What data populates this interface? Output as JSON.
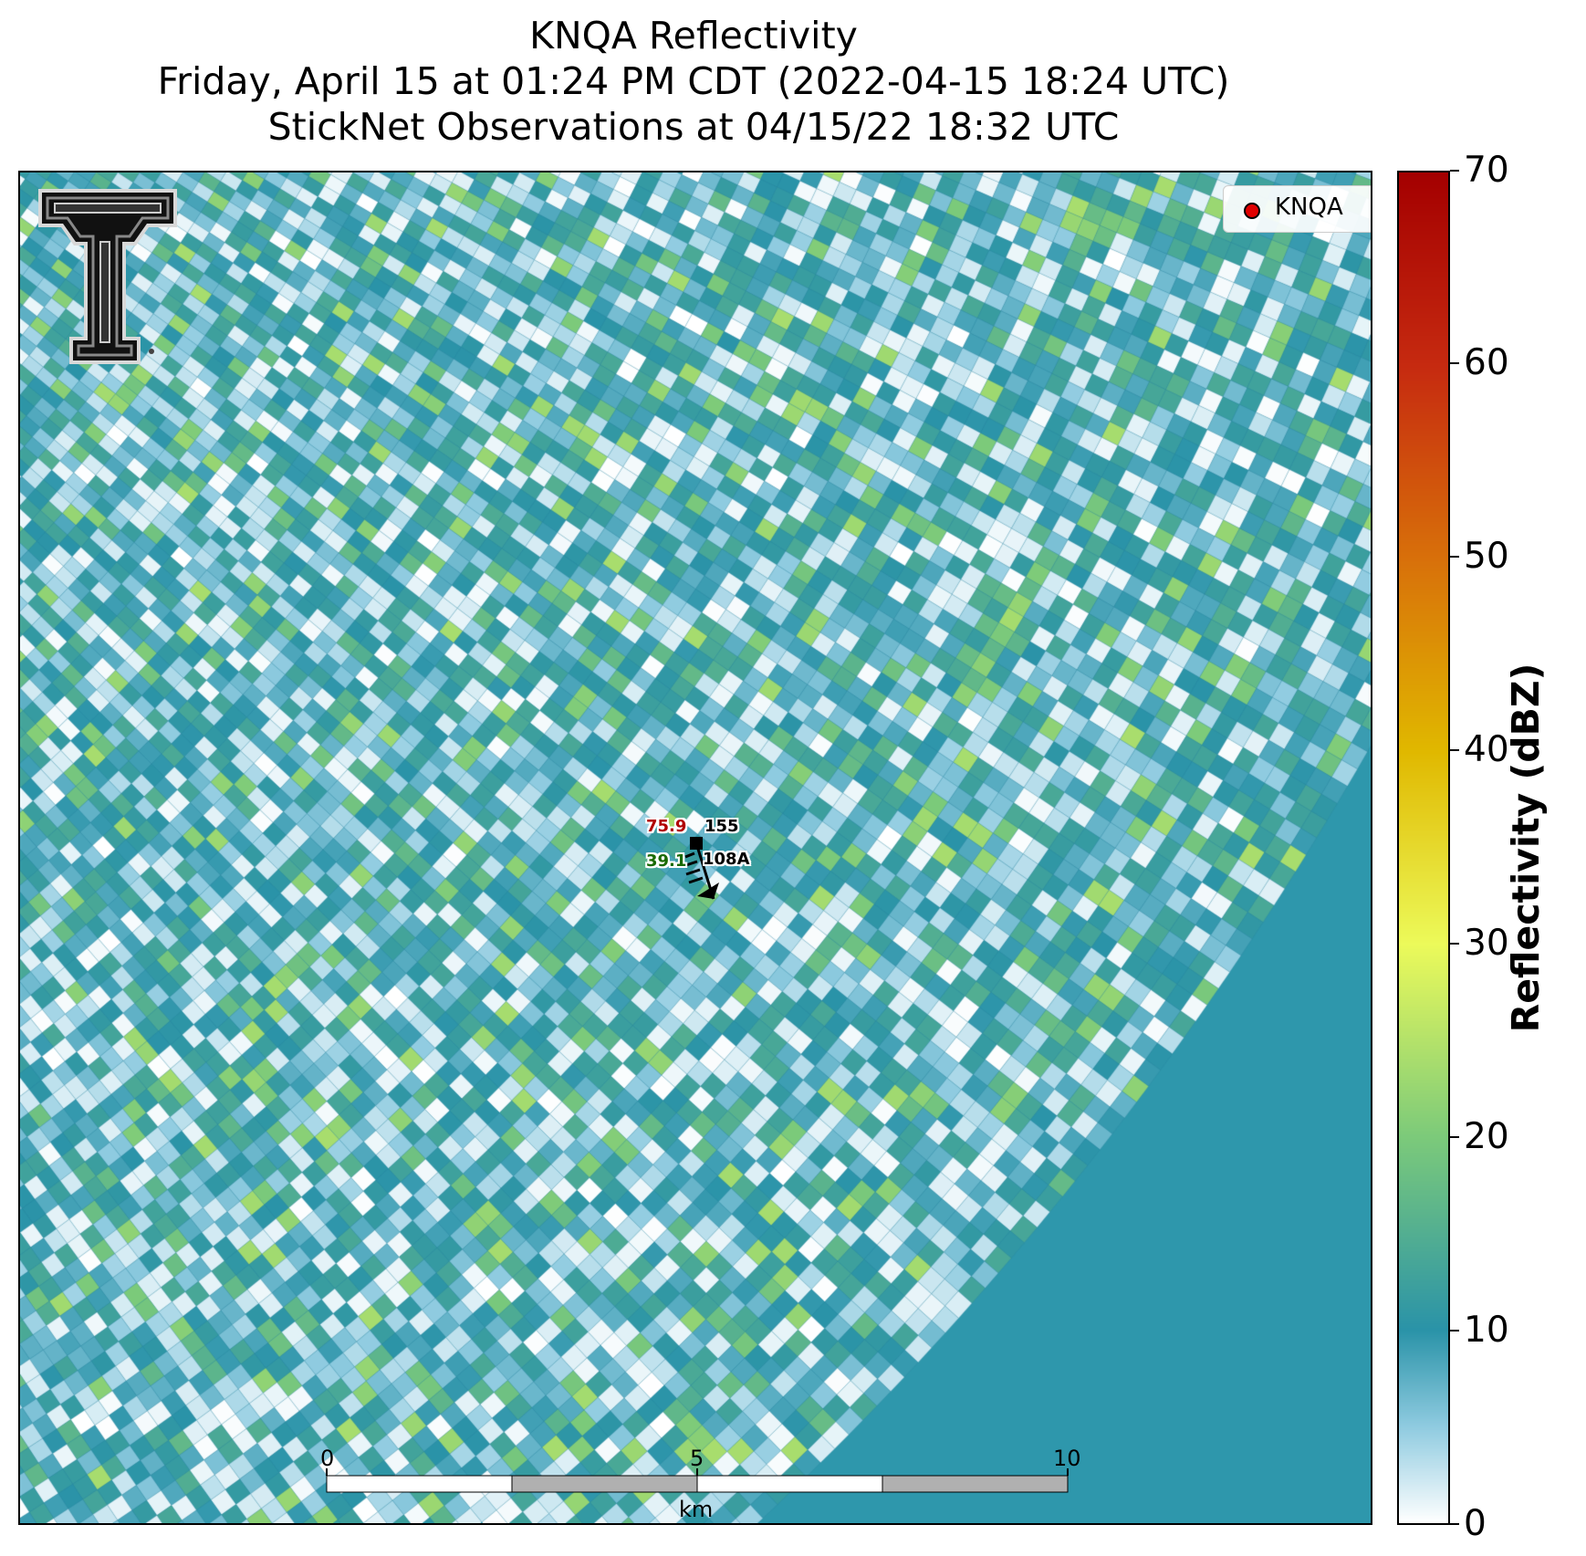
{
  "title": {
    "line1": "KNQA Reflectivity",
    "line2": "Friday, April 15 at 01:24 PM CDT (2022-04-15 18:24 UTC)",
    "line3": "StickNet Observations at 04/15/22 18:32 UTC"
  },
  "legend": {
    "label": "KNQA",
    "marker_color": "#e00000"
  },
  "station": {
    "id": "108A",
    "temperature": "75.9",
    "temperature_color": "#b00000",
    "dewpoint": "39.1",
    "dewpoint_color": "#1a6a00",
    "pressure": "155",
    "wind_barb": "wind barb pointing north-northwest"
  },
  "colorbar": {
    "title": "Reflectivity (dBZ)",
    "min": 0,
    "max": 70,
    "ticks": [
      "0",
      "10",
      "20",
      "30",
      "40",
      "50",
      "60",
      "70"
    ],
    "colors": {
      "0": "#ffffff",
      "5": "#8fcbe0",
      "10": "#2a93a8",
      "20": "#7cca7a",
      "30": "#ecfa5a",
      "40": "#e0b800",
      "50": "#d8700a",
      "60": "#c62a10",
      "70": "#a40000"
    }
  },
  "scalebar": {
    "ticks": [
      "0",
      "5",
      "10"
    ],
    "unit": "km"
  },
  "logo": {
    "name": "texas-tech-double-t-logo"
  }
}
